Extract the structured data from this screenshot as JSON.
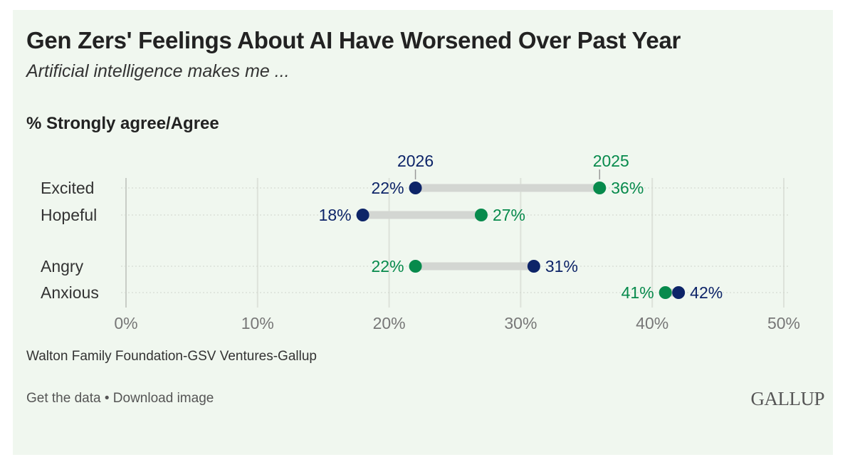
{
  "chart_data": {
    "type": "dumbbell",
    "title": "Gen Zers' Feelings About AI Have Worsened Over Past Year",
    "subtitle": "Artificial intelligence makes me ...",
    "measure_label": "% Strongly agree/Agree",
    "categories": [
      "Excited",
      "Hopeful",
      "Angry",
      "Anxious"
    ],
    "series": [
      {
        "name": "2026",
        "color": "#0d2468",
        "values": [
          22,
          18,
          31,
          42
        ]
      },
      {
        "name": "2025",
        "color": "#078a4c",
        "values": [
          36,
          27,
          22,
          41
        ]
      }
    ],
    "x_ticks": [
      "0%",
      "10%",
      "20%",
      "30%",
      "40%",
      "50%"
    ],
    "xlim": [
      0,
      50
    ]
  },
  "footer": {
    "source": "Walton Family Foundation-GSV Ventures-Gallup",
    "get_data": "Get the data",
    "separator": " • ",
    "download": "Download image",
    "logo": "GALLUP"
  }
}
